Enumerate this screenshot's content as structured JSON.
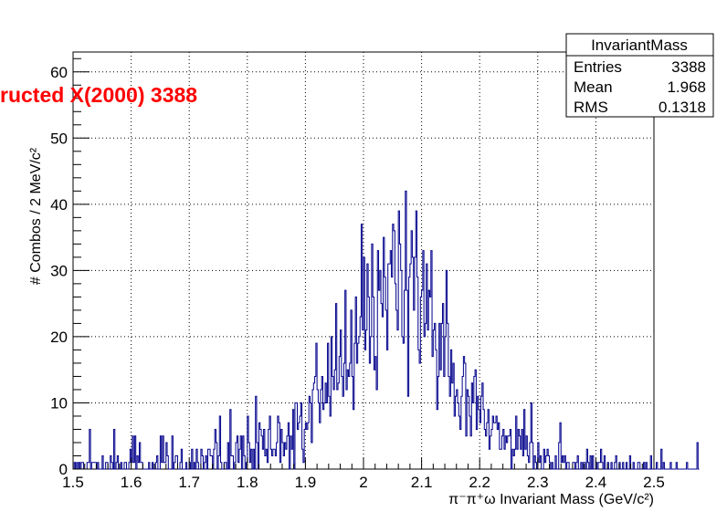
{
  "chart_data": {
    "type": "histogram",
    "overlay_title": "ructed X(2000) 3388",
    "xlabel": "π⁻π⁺ω Invariant Mass (GeV/c²)",
    "ylabel": "# Combos / 2 MeV/c²",
    "xlim": [
      1.5,
      2.5
    ],
    "ylim": [
      0,
      63
    ],
    "x_ticks": [
      "1.5",
      "1.6",
      "1.7",
      "1.8",
      "1.9",
      "2",
      "2.1",
      "2.2",
      "2.3",
      "2.4",
      "2.5"
    ],
    "y_ticks": [
      "0",
      "10",
      "20",
      "30",
      "40",
      "50",
      "60"
    ],
    "grid": true,
    "line_color": "#00008b",
    "bin_width": 0.002,
    "bin_start": 1.5,
    "values": [
      0,
      1,
      0,
      1,
      0,
      1,
      0,
      1,
      1,
      0,
      0,
      0,
      1,
      1,
      6,
      0,
      1,
      1,
      1,
      1,
      0,
      1,
      0,
      0,
      0,
      2,
      0,
      0,
      1,
      1,
      0,
      0,
      2,
      1,
      0,
      6,
      0,
      1,
      2,
      0,
      0,
      1,
      0,
      0,
      1,
      1,
      0,
      0,
      1,
      3,
      1,
      5,
      1,
      5,
      0,
      2,
      1,
      4,
      1,
      1,
      0,
      0,
      0,
      0,
      0,
      1,
      0,
      0,
      1,
      0,
      0,
      1,
      2,
      0,
      0,
      5,
      1,
      5,
      1,
      1,
      4,
      2,
      0,
      0,
      0,
      5,
      0,
      1,
      2,
      2,
      0,
      0,
      1,
      3,
      0,
      0,
      0,
      1,
      0,
      0,
      1,
      0,
      3,
      0,
      1,
      0,
      3,
      1,
      0,
      0,
      3,
      2,
      0,
      1,
      2,
      0,
      3,
      3,
      2,
      2,
      0,
      3,
      6,
      4,
      0,
      2,
      8,
      1,
      0,
      0,
      1,
      1,
      0,
      4,
      0,
      9,
      2,
      2,
      0,
      1,
      4,
      5,
      1,
      3,
      5,
      0,
      5,
      2,
      0,
      1,
      8,
      4,
      1,
      3,
      0,
      3,
      0,
      11,
      4,
      0,
      7,
      6,
      5,
      3,
      6,
      2,
      3,
      1,
      6,
      8,
      3,
      2,
      3,
      3,
      2,
      4,
      8,
      7,
      1,
      6,
      4,
      2,
      4,
      3,
      5,
      7,
      0,
      5,
      3,
      9,
      0,
      10,
      10,
      6,
      7,
      8,
      10,
      3,
      1,
      6,
      7,
      6,
      7,
      11,
      10,
      4,
      12,
      13,
      14,
      19,
      12,
      10,
      7,
      12,
      14,
      9,
      10,
      13,
      10,
      19,
      11,
      8,
      20,
      14,
      12,
      15,
      25,
      12,
      13,
      17,
      21,
      14,
      11,
      16,
      27,
      12,
      15,
      14,
      16,
      24,
      14,
      9,
      19,
      26,
      16,
      19,
      20,
      23,
      37,
      21,
      32,
      18,
      21,
      31,
      26,
      16,
      20,
      34,
      26,
      15,
      17,
      12,
      33,
      27,
      30,
      25,
      23,
      35,
      29,
      24,
      18,
      31,
      31,
      33,
      29,
      37,
      36,
      28,
      24,
      21,
      39,
      34,
      30,
      20,
      19,
      27,
      42,
      27,
      11,
      29,
      31,
      36,
      32,
      24,
      32,
      39,
      29,
      18,
      16,
      26,
      27,
      33,
      20,
      22,
      31,
      21,
      27,
      26,
      33,
      17,
      21,
      22,
      18,
      9,
      14,
      22,
      15,
      22,
      25,
      14,
      20,
      30,
      22,
      14,
      11,
      18,
      13,
      16,
      8,
      11,
      12,
      10,
      8,
      6,
      11,
      14,
      17,
      16,
      5,
      12,
      11,
      8,
      5,
      13,
      10,
      14,
      15,
      6,
      11,
      9,
      7,
      11,
      13,
      9,
      6,
      5,
      7,
      9,
      3,
      5,
      6,
      8,
      7,
      7,
      8,
      6,
      7,
      3,
      3,
      5,
      6,
      3,
      5,
      4,
      5,
      5,
      6,
      0,
      3,
      2,
      3,
      8,
      3,
      6,
      5,
      3,
      6,
      2,
      9,
      3,
      5,
      2,
      1,
      4,
      10,
      4,
      0,
      2,
      1,
      0,
      4,
      1,
      2,
      0,
      0,
      3,
      1,
      2,
      3,
      2,
      1,
      0,
      1,
      0,
      0,
      2,
      0,
      0,
      4,
      7,
      1,
      2,
      1,
      2,
      0,
      1,
      1,
      0,
      0,
      0,
      1,
      1,
      0,
      1,
      2,
      0,
      0,
      1,
      0,
      1,
      1,
      0,
      3,
      1,
      0,
      2,
      0,
      2,
      0,
      0,
      1,
      0,
      1,
      1,
      3,
      1,
      0,
      2,
      0,
      0,
      1,
      0,
      0,
      1,
      0,
      0,
      1,
      2,
      0,
      0,
      1,
      0,
      0,
      1,
      0,
      0,
      1,
      0,
      0,
      2,
      0,
      0,
      1,
      0,
      0,
      0,
      1,
      1,
      0,
      0,
      0,
      1,
      0,
      1,
      0,
      0,
      0,
      2,
      0,
      0,
      0,
      0,
      1,
      0,
      0,
      0,
      3,
      0,
      1,
      0,
      0,
      0,
      0,
      0,
      1,
      0,
      0,
      0,
      0,
      1,
      0,
      0,
      0,
      0,
      0,
      0,
      0,
      0,
      1,
      0,
      0,
      0,
      0,
      0,
      0,
      0,
      0,
      4,
      0
    ]
  },
  "stats_box": {
    "title": "InvariantMass",
    "rows": [
      {
        "label": "Entries",
        "value": "3388"
      },
      {
        "label": "Mean",
        "value": "1.968"
      },
      {
        "label": "RMS",
        "value": "0.1318"
      }
    ]
  }
}
